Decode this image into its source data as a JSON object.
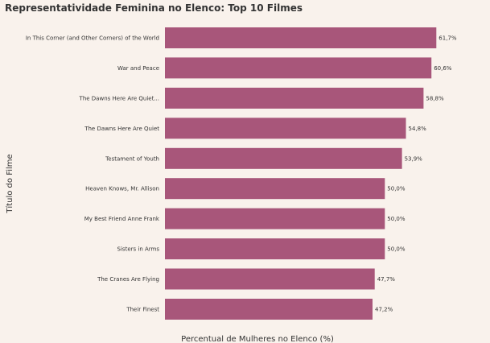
{
  "chart_data": {
    "type": "bar",
    "orientation": "horizontal",
    "title": "Representatividade Feminina no Elenco: Top 10 Filmes",
    "xlabel": "Percentual de Mulheres no Elenco (%)",
    "ylabel": "Título do Filme",
    "xlim": [
      0,
      65
    ],
    "grid": false,
    "bar_color": "#a8567a",
    "background": "#f9f2ec",
    "categories": [
      "In This Corner (and Other Corners) of the World",
      "War and Peace",
      "The Dawns Here Are Quiet...",
      "The Dawns Here Are Quiet",
      "Testament of Youth",
      "Heaven Knows, Mr. Allison",
      "My Best Friend Anne Frank",
      "Sisters in Arms",
      "The Cranes Are Flying",
      "Their Finest"
    ],
    "values": [
      61.7,
      60.6,
      58.8,
      54.8,
      53.9,
      50.0,
      50.0,
      50.0,
      47.7,
      47.2
    ],
    "value_labels": [
      "61,7%",
      "60,6%",
      "58,8%",
      "54,8%",
      "53,9%",
      "50,0%",
      "50,0%",
      "50,0%",
      "47,7%",
      "47,2%"
    ]
  }
}
